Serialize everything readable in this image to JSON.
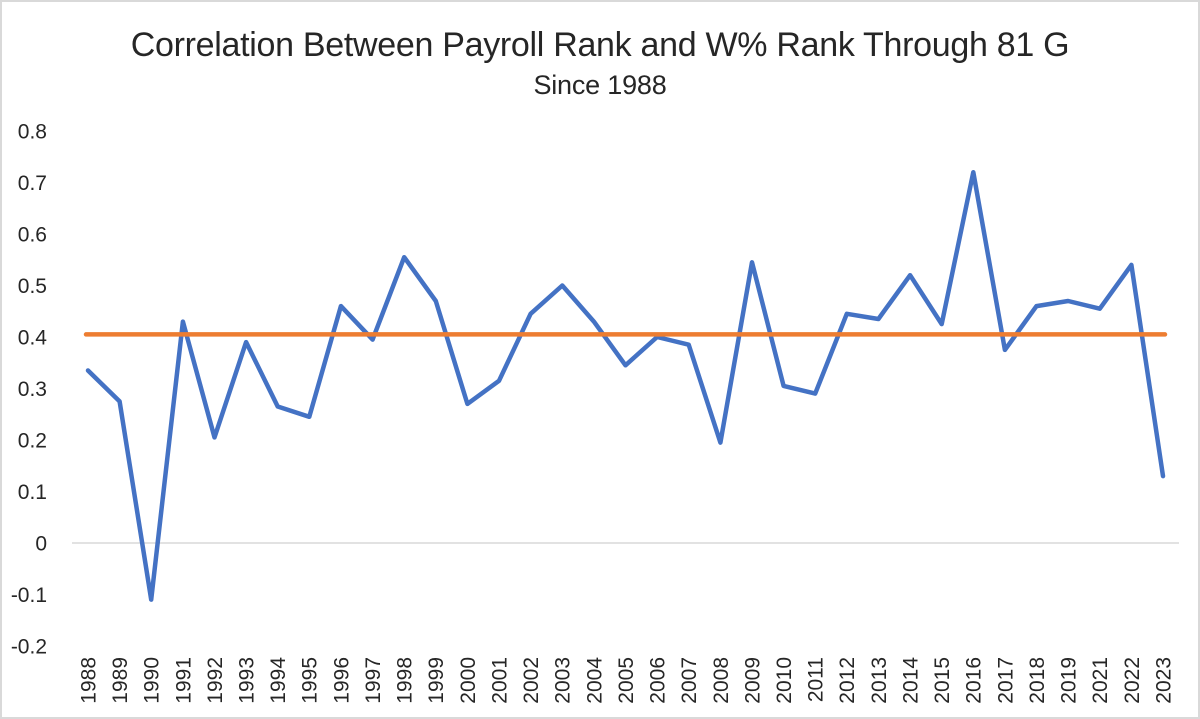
{
  "chart_data": {
    "type": "line",
    "title": "Correlation Between Payroll Rank and W% Rank Through 81 G",
    "subtitle": "Since 1988",
    "categories": [
      "1988",
      "1989",
      "1990",
      "1991",
      "1992",
      "1993",
      "1994",
      "1995",
      "1996",
      "1997",
      "1998",
      "1999",
      "2000",
      "2001",
      "2002",
      "2003",
      "2004",
      "2005",
      "2006",
      "2007",
      "2008",
      "2009",
      "2010",
      "2011",
      "2012",
      "2013",
      "2014",
      "2015",
      "2016",
      "2017",
      "2018",
      "2019",
      "2021",
      "2022",
      "2023"
    ],
    "series": [
      {
        "name": "correlation-by-year",
        "color": "#4472C4",
        "values": [
          0.335,
          0.275,
          -0.11,
          0.43,
          0.205,
          0.39,
          0.265,
          0.245,
          0.46,
          0.395,
          0.555,
          0.47,
          0.27,
          0.315,
          0.445,
          0.5,
          0.43,
          0.345,
          0.4,
          0.385,
          0.195,
          0.545,
          0.305,
          0.29,
          0.445,
          0.435,
          0.52,
          0.425,
          0.72,
          0.375,
          0.46,
          0.47,
          0.455,
          0.54,
          0.13
        ]
      },
      {
        "name": "average-reference-line",
        "color": "#ED7D31",
        "constant": 0.405
      }
    ],
    "ylim": [
      -0.2,
      0.8
    ],
    "ytick_labels": [
      "0.8",
      "0.7",
      "0.6",
      "0.5",
      "0.4",
      "0.3",
      "0.2",
      "0.1",
      "0",
      "-0.1",
      "-0.2"
    ],
    "gridlines": [
      0
    ],
    "legend": "none",
    "colors": {
      "grid": "#D9D9D9",
      "frame": "#D9D9D9",
      "text": "#262626"
    }
  }
}
